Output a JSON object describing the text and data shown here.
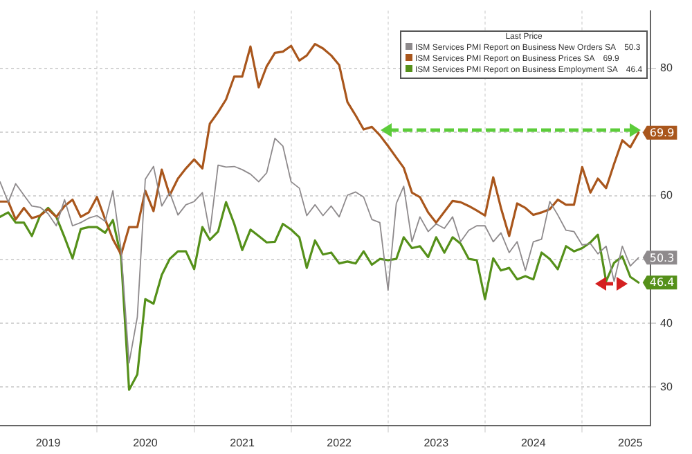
{
  "chart_data": {
    "type": "line",
    "legend_title": "Last Price",
    "x": [
      "2019-01",
      "2019-02",
      "2019-03",
      "2019-04",
      "2019-05",
      "2019-06",
      "2019-07",
      "2019-08",
      "2019-09",
      "2019-10",
      "2019-11",
      "2019-12",
      "2020-01",
      "2020-02",
      "2020-03",
      "2020-04",
      "2020-05",
      "2020-06",
      "2020-07",
      "2020-08",
      "2020-09",
      "2020-10",
      "2020-11",
      "2020-12",
      "2021-01",
      "2021-02",
      "2021-03",
      "2021-04",
      "2021-05",
      "2021-06",
      "2021-07",
      "2021-08",
      "2021-09",
      "2021-10",
      "2021-11",
      "2021-12",
      "2022-01",
      "2022-02",
      "2022-03",
      "2022-04",
      "2022-05",
      "2022-06",
      "2022-07",
      "2022-08",
      "2022-09",
      "2022-10",
      "2022-11",
      "2022-12",
      "2023-01",
      "2023-02",
      "2023-03",
      "2023-04",
      "2023-05",
      "2023-06",
      "2023-07",
      "2023-08",
      "2023-09",
      "2023-10",
      "2023-11",
      "2023-12",
      "2024-01",
      "2024-02",
      "2024-03",
      "2024-04",
      "2024-05",
      "2024-06",
      "2024-07",
      "2024-08",
      "2024-09",
      "2024-10",
      "2024-11",
      "2024-12",
      "2025-01",
      "2025-02",
      "2025-03",
      "2025-04",
      "2025-05",
      "2025-06",
      "2025-07",
      "2025-08"
    ],
    "series": [
      {
        "name": "ISM Services PMI Report on Business New Orders SA",
        "color": "#8e8a8c",
        "values": [
          62.2,
          59.0,
          61.9,
          60.1,
          58.4,
          58.2,
          57.2,
          55.3,
          59.4,
          55.3,
          55.8,
          56.5,
          56.9,
          56.0,
          60.8,
          51.5,
          33.8,
          41.0,
          62.6,
          64.6,
          58.4,
          60.5,
          57.0,
          58.6,
          59.1,
          60.5,
          54.2,
          64.8,
          64.5,
          64.6,
          64.1,
          63.4,
          62.2,
          63.6,
          69.0,
          67.8,
          62.2,
          61.2,
          56.9,
          58.6,
          56.9,
          58.4,
          56.7,
          60.1,
          60.6,
          59.8,
          56.3,
          55.8,
          45.2,
          58.8,
          61.5,
          52.8,
          56.7,
          54.4,
          55.6,
          54.9,
          56.7,
          52.8,
          54.6,
          55.3,
          55.3,
          52.8,
          54.2,
          51.1,
          52.8,
          48.3,
          52.8,
          53.2,
          59.1,
          57.0,
          54.6,
          54.4,
          52.3,
          52.5,
          50.9,
          52.1,
          46.6,
          52.1,
          49.0,
          50.3
        ],
        "value_labels": [
          null,
          null,
          null,
          null,
          null,
          null,
          null,
          null,
          null,
          null,
          null,
          null,
          null,
          null,
          null,
          null,
          null,
          null,
          null,
          null,
          null,
          null,
          null,
          null,
          null,
          null,
          null,
          null,
          null,
          null,
          null,
          null,
          null,
          null,
          null,
          null,
          null,
          null,
          null,
          null,
          null,
          null,
          null,
          null,
          null,
          null,
          null,
          null,
          null,
          null,
          null,
          null,
          null,
          null,
          null,
          null,
          null,
          null,
          null,
          null,
          null,
          null,
          null,
          null,
          null,
          null,
          null,
          null,
          null,
          null,
          null,
          null,
          null,
          null,
          null,
          null,
          null,
          null,
          null,
          "50.3"
        ]
      },
      {
        "name": "ISM Services PMI Report on Business Prices SA",
        "color": "#a9561c",
        "values": [
          59.1,
          59.1,
          56.3,
          58.1,
          56.5,
          56.9,
          57.9,
          56.7,
          58.4,
          59.4,
          56.7,
          57.4,
          59.8,
          56.3,
          53.2,
          50.8,
          55.1,
          55.1,
          60.8,
          57.6,
          64.1,
          60.1,
          62.7,
          64.3,
          65.7,
          64.3,
          71.3,
          73.1,
          75.1,
          78.7,
          78.7,
          83.4,
          77.0,
          80.3,
          82.4,
          82.6,
          83.5,
          81.2,
          82.0,
          83.8,
          83.1,
          82.0,
          80.5,
          74.7,
          72.6,
          70.4,
          70.8,
          69.5,
          67.8,
          66.0,
          64.4,
          60.5,
          59.8,
          57.4,
          55.8,
          57.5,
          59.2,
          59.0,
          58.4,
          57.7,
          56.9,
          62.9,
          58.1,
          53.7,
          58.8,
          58.1,
          57.0,
          57.4,
          57.9,
          59.4,
          58.6,
          58.6,
          64.5,
          60.5,
          62.7,
          61.2,
          65.0,
          68.7,
          67.6,
          69.9
        ],
        "value_labels": [
          null,
          null,
          null,
          null,
          null,
          null,
          null,
          null,
          null,
          null,
          null,
          null,
          null,
          null,
          null,
          null,
          null,
          null,
          null,
          null,
          null,
          null,
          null,
          null,
          null,
          null,
          null,
          null,
          null,
          null,
          null,
          null,
          null,
          null,
          null,
          null,
          null,
          null,
          null,
          null,
          null,
          null,
          null,
          null,
          null,
          null,
          null,
          null,
          null,
          null,
          null,
          null,
          null,
          null,
          null,
          null,
          null,
          null,
          null,
          null,
          null,
          null,
          null,
          null,
          null,
          null,
          null,
          null,
          null,
          null,
          null,
          null,
          null,
          null,
          null,
          null,
          null,
          null,
          null,
          "69.9"
        ]
      },
      {
        "name": "ISM Services PMI Report on Business Employment SA",
        "color": "#55901a",
        "values": [
          56.7,
          57.4,
          55.8,
          55.8,
          53.7,
          56.9,
          58.1,
          56.7,
          53.5,
          50.2,
          54.8,
          55.1,
          55.1,
          54.2,
          56.2,
          50.4,
          29.6,
          32.0,
          43.8,
          43.1,
          47.6,
          50.1,
          51.3,
          51.3,
          48.5,
          55.1,
          53.1,
          54.4,
          59.0,
          55.6,
          51.5,
          54.7,
          53.7,
          52.7,
          52.8,
          55.6,
          54.7,
          53.5,
          48.7,
          53.0,
          50.8,
          51.1,
          49.4,
          49.7,
          49.4,
          51.3,
          49.2,
          50.1,
          49.9,
          50.1,
          53.5,
          51.8,
          52.1,
          50.4,
          53.5,
          51.1,
          53.5,
          52.5,
          50.1,
          49.9,
          43.8,
          50.2,
          48.3,
          48.7,
          46.9,
          47.4,
          46.9,
          51.1,
          50.1,
          48.5,
          52.1,
          51.3,
          51.8,
          52.7,
          53.9,
          46.6,
          49.5,
          50.5,
          47.3,
          46.4
        ],
        "value_labels": [
          null,
          null,
          null,
          null,
          null,
          null,
          null,
          null,
          null,
          null,
          null,
          null,
          null,
          null,
          null,
          null,
          null,
          null,
          null,
          null,
          null,
          null,
          null,
          null,
          null,
          null,
          null,
          null,
          null,
          null,
          null,
          null,
          null,
          null,
          null,
          null,
          null,
          null,
          null,
          null,
          null,
          null,
          null,
          null,
          null,
          null,
          null,
          null,
          null,
          null,
          null,
          null,
          null,
          null,
          null,
          null,
          null,
          null,
          null,
          null,
          null,
          null,
          null,
          null,
          null,
          null,
          null,
          null,
          null,
          null,
          null,
          null,
          null,
          null,
          null,
          null,
          null,
          null,
          null,
          "46.4"
        ]
      }
    ],
    "xlim": [
      "2019-01-01",
      "2025-09-15"
    ],
    "xticks": [
      {
        "value": "2019-07-01",
        "label": "2019"
      },
      {
        "value": "2020-01-01",
        "label": null
      },
      {
        "value": "2020-07-01",
        "label": "2020"
      },
      {
        "value": "2021-01-01",
        "label": null
      },
      {
        "value": "2021-07-01",
        "label": "2021"
      },
      {
        "value": "2022-01-01",
        "label": null
      },
      {
        "value": "2022-07-01",
        "label": "2022"
      },
      {
        "value": "2023-01-01",
        "label": null
      },
      {
        "value": "2023-07-01",
        "label": "2023"
      },
      {
        "value": "2024-01-01",
        "label": null
      },
      {
        "value": "2024-07-01",
        "label": "2024"
      },
      {
        "value": "2025-01-01",
        "label": null
      },
      {
        "value": "2025-07-01",
        "label": "2025"
      }
    ],
    "ylim": [
      24,
      89
    ],
    "yticks": [
      30,
      40,
      {
        "value": 50,
        "label": null
      },
      60,
      {
        "value": 70,
        "label": null
      },
      80
    ],
    "grid": true,
    "legend": "top right",
    "marker": "none",
    "line_style": "solid"
  }
}
